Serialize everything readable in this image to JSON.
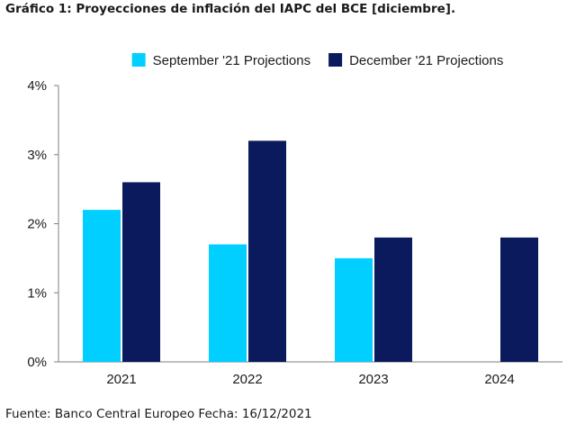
{
  "title": "Gráfico 1: Proyecciones de inflación del IAPC del BCE [diciembre].",
  "source": "Fuente: Banco Central Europeo Fecha: 16/12/2021",
  "chart_data": {
    "type": "bar",
    "categories": [
      "2021",
      "2022",
      "2023",
      "2024"
    ],
    "series": [
      {
        "name": "September '21 Projections",
        "color": "#00CFFF",
        "values": [
          2.2,
          1.7,
          1.5,
          null
        ]
      },
      {
        "name": "December '21 Projections",
        "color": "#0A1A5C",
        "values": [
          2.6,
          3.2,
          1.8,
          1.8
        ]
      }
    ],
    "yticks": [
      "0%",
      "1%",
      "2%",
      "3%",
      "4%"
    ],
    "ylim": [
      0,
      4
    ],
    "grid": false,
    "legend_position": "top"
  }
}
